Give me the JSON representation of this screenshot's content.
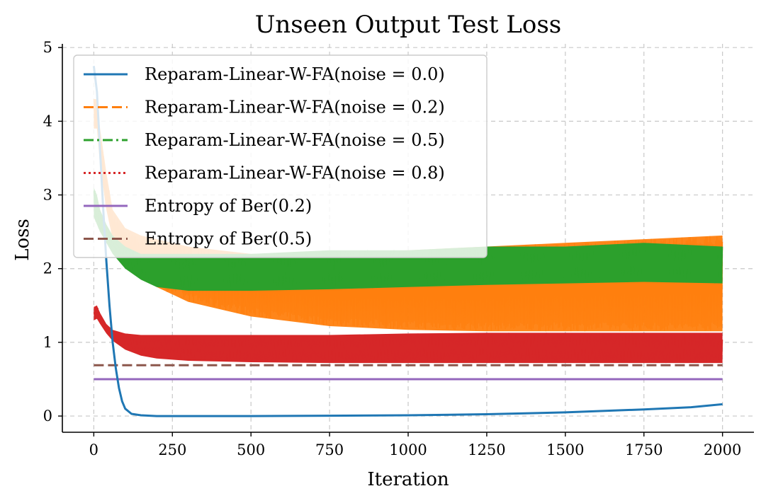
{
  "chart_data": {
    "type": "line",
    "title": "Unseen Output Test Loss",
    "xlabel": "Iteration",
    "ylabel": "Loss",
    "xlim": [
      -100,
      2100
    ],
    "ylim": [
      -0.22,
      5.05
    ],
    "xticks": [
      0,
      250,
      500,
      750,
      1000,
      1250,
      1500,
      1750,
      2000
    ],
    "xtick_labels": [
      "0",
      "250",
      "500",
      "750",
      "1000",
      "1250",
      "1500",
      "1750",
      "2000"
    ],
    "yticks": [
      0,
      1,
      2,
      3,
      4,
      5
    ],
    "ytick_labels": [
      "0",
      "1",
      "2",
      "3",
      "4",
      "5"
    ],
    "grid": true,
    "legend_position": "top-left",
    "series": [
      {
        "name": "Reparam-Linear-W-FA(noise = 0.0)",
        "color": "#1f77b4",
        "style": "solid",
        "kind": "line",
        "x": [
          0,
          10,
          20,
          30,
          40,
          50,
          60,
          70,
          80,
          90,
          100,
          120,
          150,
          200,
          300,
          500,
          750,
          1000,
          1250,
          1500,
          1750,
          1900,
          2000
        ],
        "y": [
          4.75,
          4.4,
          3.6,
          2.8,
          2.1,
          1.5,
          1.0,
          0.65,
          0.38,
          0.2,
          0.1,
          0.03,
          0.01,
          0.0,
          0.0,
          0.0,
          0.005,
          0.01,
          0.025,
          0.05,
          0.09,
          0.12,
          0.16
        ]
      },
      {
        "name": "Reparam-Linear-W-FA(noise = 0.2)",
        "color": "#ff7f0e",
        "style": "dashed",
        "kind": "band",
        "x": [
          0,
          10,
          20,
          40,
          60,
          100,
          150,
          200,
          300,
          400,
          500,
          750,
          1000,
          1250,
          1500,
          1750,
          2000
        ],
        "upper": [
          4.3,
          4.3,
          3.9,
          3.3,
          2.8,
          2.55,
          2.45,
          2.4,
          2.3,
          2.25,
          2.2,
          2.2,
          2.25,
          2.3,
          2.35,
          2.4,
          2.45
        ],
        "lower": [
          3.9,
          3.9,
          3.4,
          2.8,
          2.4,
          2.15,
          1.95,
          1.75,
          1.55,
          1.45,
          1.35,
          1.22,
          1.17,
          1.15,
          1.15,
          1.15,
          1.15
        ]
      },
      {
        "name": "Reparam-Linear-W-FA(noise = 0.5)",
        "color": "#2ca02c",
        "style": "dashdot",
        "kind": "band",
        "x": [
          0,
          10,
          20,
          40,
          60,
          100,
          150,
          200,
          300,
          500,
          750,
          1000,
          1250,
          1500,
          1750,
          2000
        ],
        "upper": [
          3.1,
          3.0,
          2.8,
          2.6,
          2.45,
          2.3,
          2.2,
          2.2,
          2.2,
          2.2,
          2.25,
          2.25,
          2.3,
          2.3,
          2.35,
          2.3
        ],
        "lower": [
          2.7,
          2.6,
          2.5,
          2.35,
          2.2,
          2.0,
          1.85,
          1.75,
          1.7,
          1.7,
          1.72,
          1.75,
          1.78,
          1.8,
          1.82,
          1.8
        ]
      },
      {
        "name": "Reparam-Linear-W-FA(noise = 0.8)",
        "color": "#d62728",
        "style": "dotted",
        "kind": "band",
        "x": [
          0,
          10,
          20,
          40,
          60,
          100,
          150,
          200,
          300,
          500,
          750,
          1000,
          1250,
          1500,
          1750,
          2000
        ],
        "upper": [
          1.48,
          1.5,
          1.4,
          1.25,
          1.17,
          1.12,
          1.1,
          1.1,
          1.1,
          1.1,
          1.1,
          1.12,
          1.13,
          1.13,
          1.13,
          1.13
        ],
        "lower": [
          1.3,
          1.32,
          1.25,
          1.12,
          1.02,
          0.9,
          0.82,
          0.78,
          0.75,
          0.73,
          0.72,
          0.72,
          0.72,
          0.72,
          0.72,
          0.72
        ]
      },
      {
        "name": "Entropy of Ber(0.2)",
        "color": "#9467bd",
        "style": "solid",
        "kind": "line",
        "x": [
          0,
          2000
        ],
        "y": [
          0.5,
          0.5
        ]
      },
      {
        "name": "Entropy of Ber(0.5)",
        "color": "#8c564b",
        "style": "dashed",
        "kind": "line",
        "x": [
          0,
          2000
        ],
        "y": [
          0.69,
          0.69
        ]
      }
    ]
  }
}
